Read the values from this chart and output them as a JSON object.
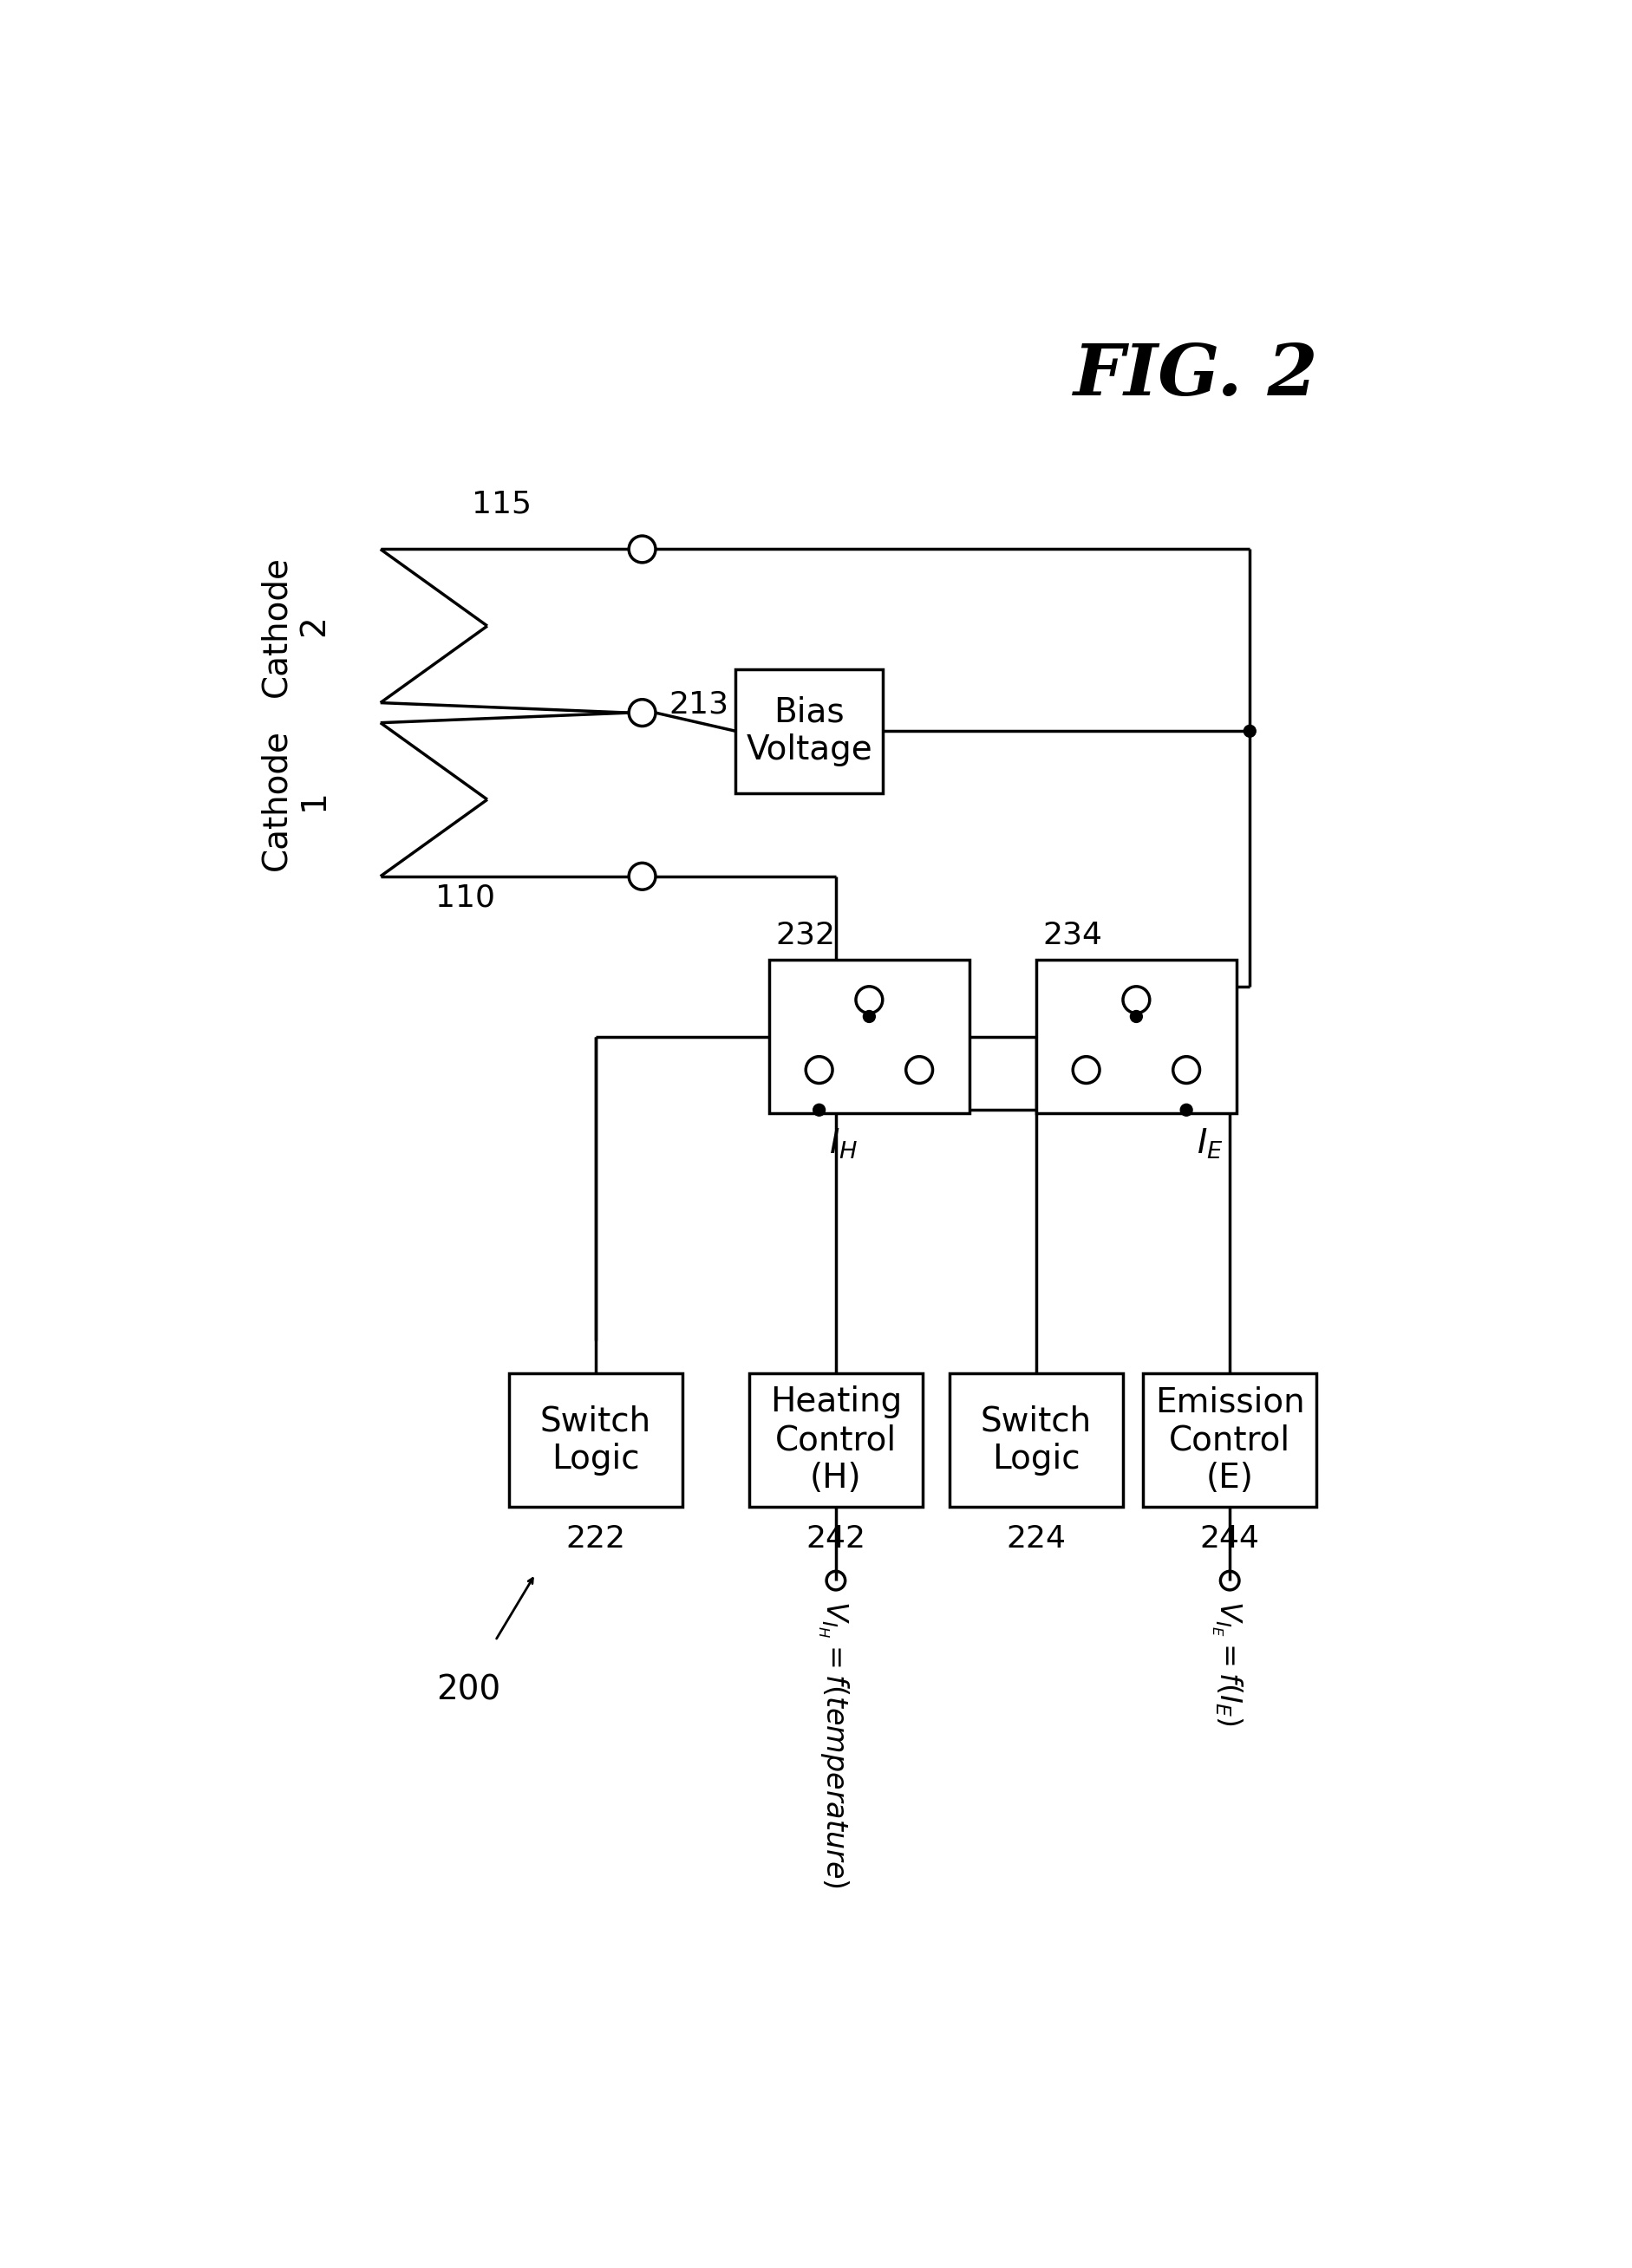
{
  "fig_label": "FIG. 2",
  "system_label": "200",
  "background_color": "#ffffff",
  "cathode1_label": "Cathode\n1",
  "cathode2_label": "Cathode\n2",
  "ref_110": "110",
  "ref_115": "115",
  "ref_213": "213",
  "ref_222": "222",
  "ref_224": "224",
  "ref_232": "232",
  "ref_234": "234",
  "ref_242": "242",
  "ref_244": "244",
  "box_bias_voltage": "Bias\nVoltage",
  "box_switch_logic_1": "Switch\nLogic",
  "box_heating_control": "Heating\nControl\n(H)",
  "box_switch_logic_2": "Switch\nLogic",
  "box_emission_control": "Emission\nControl\n(E)",
  "label_IH": "$I_H$",
  "label_IE": "$I_E$",
  "label_VIH": "$V_{I_H} = f(temperature)$",
  "label_VIE": "$V_{I_E}= f(I_E)$"
}
